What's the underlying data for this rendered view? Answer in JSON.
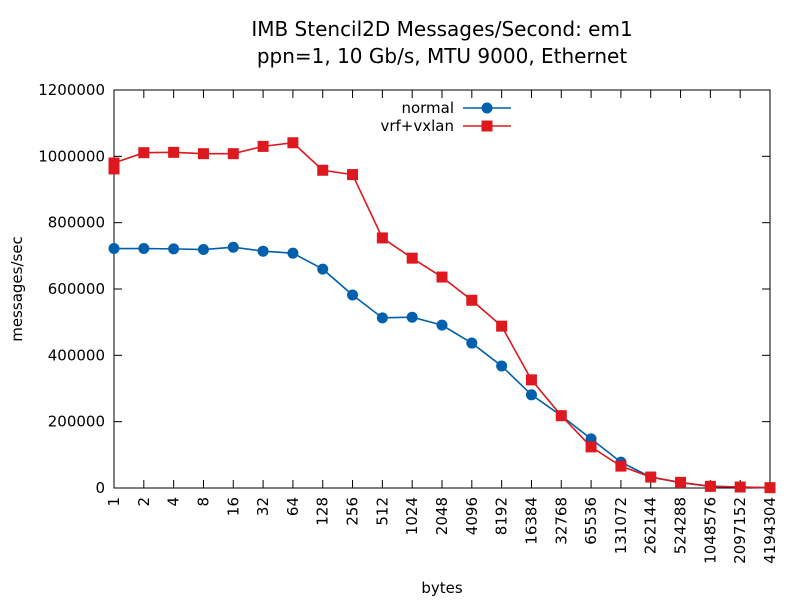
{
  "chart_data": {
    "type": "line",
    "title": "IMB Stencil2D Messages/Second: em1",
    "subtitle": "ppn=1, 10 Gb/s, MTU 9000, Ethernet",
    "xlabel": "bytes",
    "ylabel": "messages/sec",
    "categories": [
      "1",
      "2",
      "4",
      "8",
      "16",
      "32",
      "64",
      "128",
      "256",
      "512",
      "1024",
      "2048",
      "4096",
      "8192",
      "16384",
      "32768",
      "65536",
      "131072",
      "262144",
      "524288",
      "1048576",
      "2097152",
      "4194304"
    ],
    "yticks": [
      "0",
      "200000",
      "400000",
      "600000",
      "800000",
      "1000000",
      "1200000"
    ],
    "ylim": [
      0,
      1200000
    ],
    "grid": false,
    "legend_position": "top-center",
    "series": [
      {
        "name": "normal",
        "color": "#0060ad",
        "marker": "circle",
        "values": [
          722000,
          722000,
          721000,
          719000,
          726000,
          714000,
          708000,
          660000,
          582000,
          513000,
          515000,
          491000,
          437000,
          368000,
          281000,
          218000,
          148000,
          78000,
          33000,
          16000,
          5000,
          3000,
          1000
        ]
      },
      {
        "name": "vrf+vxlan",
        "color": "#dd181f",
        "marker": "square",
        "values": [
          980000,
          1011000,
          1012000,
          1008000,
          1008000,
          1030000,
          1041000,
          958000,
          945000,
          754000,
          693000,
          636000,
          566000,
          488000,
          326000,
          218000,
          124000,
          66000,
          33000,
          17000,
          5000,
          3000,
          1000
        ],
        "extra_points": [
          {
            "x_index": 0,
            "value": 962000
          }
        ]
      }
    ]
  }
}
